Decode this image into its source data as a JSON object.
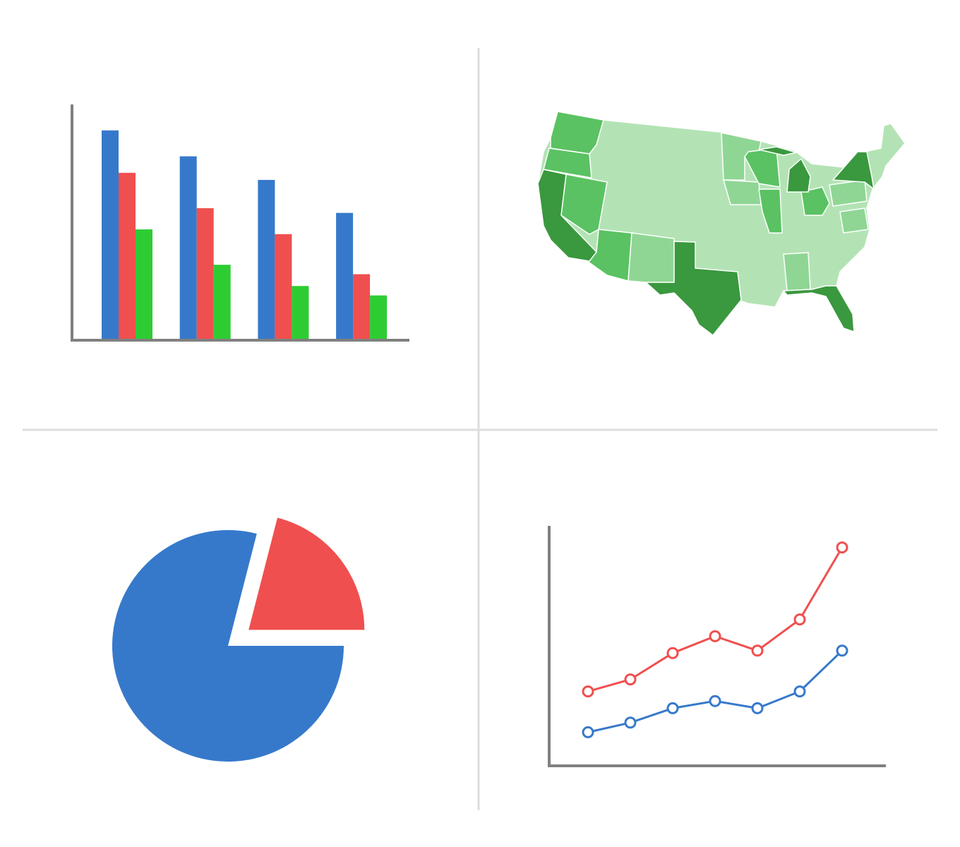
{
  "chart_data": [
    {
      "type": "bar",
      "categories": [
        null,
        null,
        null,
        null
      ],
      "series": [
        {
          "color": "#3679cb",
          "values": [
            89,
            78,
            68,
            54
          ]
        },
        {
          "color": "#f04f4f",
          "values": [
            71,
            56,
            45,
            28
          ]
        },
        {
          "color": "#2ecc33",
          "values": [
            47,
            32,
            23,
            19
          ]
        }
      ],
      "ylim": [
        0,
        100
      ]
    },
    {
      "type": "pie",
      "values": [
        21,
        79
      ],
      "colors": [
        "#f04f4f",
        "#3679cb"
      ]
    },
    {
      "type": "line",
      "categories": [
        null,
        null,
        null,
        null,
        null,
        null,
        null
      ],
      "series": [
        {
          "color": "#f04f4f",
          "values": [
            31,
            36,
            47,
            54,
            48,
            61,
            91
          ]
        },
        {
          "color": "#3679cb",
          "values": [
            14,
            18,
            24,
            27,
            24,
            31,
            48
          ]
        }
      ],
      "ylim": [
        0,
        100
      ]
    }
  ]
}
